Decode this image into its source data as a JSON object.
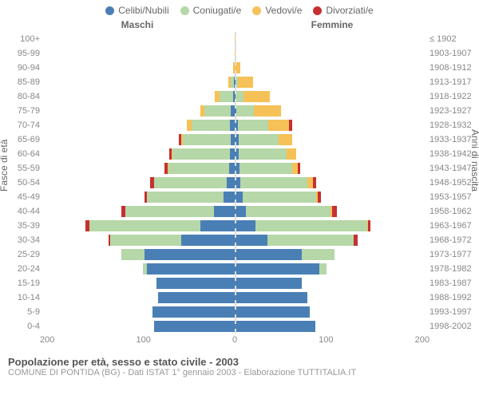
{
  "legend": [
    {
      "label": "Celibi/Nubili",
      "color": "#4a7fb6"
    },
    {
      "label": "Coniugati/e",
      "color": "#b6d7a8"
    },
    {
      "label": "Vedovi/e",
      "color": "#f6c157"
    },
    {
      "label": "Divorziati/e",
      "color": "#c73030"
    }
  ],
  "headers": {
    "male": "Maschi",
    "female": "Femmine"
  },
  "yaxis_left_label": "Fasce di età",
  "yaxis_right_label": "Anni di nascita",
  "xmax": 200,
  "xticks_male": [
    "200",
    "100",
    "0"
  ],
  "xticks_female": [
    "0",
    "100",
    "200"
  ],
  "rows": [
    {
      "age": "100+",
      "year": "≤ 1902",
      "m": [
        0,
        0,
        0,
        0
      ],
      "f": [
        0,
        0,
        1,
        0
      ]
    },
    {
      "age": "95-99",
      "year": "1903-1907",
      "m": [
        0,
        0,
        0,
        0
      ],
      "f": [
        0,
        0,
        1,
        0
      ]
    },
    {
      "age": "90-94",
      "year": "1908-1912",
      "m": [
        0,
        0,
        2,
        0
      ],
      "f": [
        0,
        0,
        6,
        0
      ]
    },
    {
      "age": "85-89",
      "year": "1913-1917",
      "m": [
        1,
        3,
        3,
        0
      ],
      "f": [
        1,
        2,
        16,
        0
      ]
    },
    {
      "age": "80-84",
      "year": "1918-1922",
      "m": [
        2,
        14,
        5,
        0
      ],
      "f": [
        1,
        8,
        28,
        0
      ]
    },
    {
      "age": "75-79",
      "year": "1923-1927",
      "m": [
        4,
        28,
        4,
        0
      ],
      "f": [
        2,
        18,
        28,
        0
      ]
    },
    {
      "age": "70-74",
      "year": "1928-1932",
      "m": [
        5,
        40,
        5,
        0
      ],
      "f": [
        3,
        32,
        22,
        3
      ]
    },
    {
      "age": "65-69",
      "year": "1933-1937",
      "m": [
        4,
        50,
        2,
        2
      ],
      "f": [
        4,
        42,
        14,
        0
      ]
    },
    {
      "age": "60-64",
      "year": "1938-1942",
      "m": [
        5,
        60,
        1,
        2
      ],
      "f": [
        4,
        50,
        10,
        0
      ]
    },
    {
      "age": "55-59",
      "year": "1943-1947",
      "m": [
        6,
        63,
        1,
        3
      ],
      "f": [
        5,
        55,
        6,
        2
      ]
    },
    {
      "age": "50-54",
      "year": "1948-1952",
      "m": [
        8,
        76,
        0,
        4
      ],
      "f": [
        6,
        70,
        6,
        3
      ]
    },
    {
      "age": "45-49",
      "year": "1953-1957",
      "m": [
        12,
        80,
        0,
        2
      ],
      "f": [
        8,
        77,
        2,
        3
      ]
    },
    {
      "age": "40-44",
      "year": "1958-1962",
      "m": [
        22,
        92,
        0,
        4
      ],
      "f": [
        12,
        88,
        2,
        5
      ]
    },
    {
      "age": "35-39",
      "year": "1963-1967",
      "m": [
        36,
        116,
        0,
        4
      ],
      "f": [
        22,
        116,
        1,
        3
      ]
    },
    {
      "age": "30-34",
      "year": "1968-1972",
      "m": [
        56,
        74,
        0,
        2
      ],
      "f": [
        34,
        90,
        0,
        4
      ]
    },
    {
      "age": "25-29",
      "year": "1973-1977",
      "m": [
        94,
        24,
        0,
        0
      ],
      "f": [
        70,
        34,
        0,
        0
      ]
    },
    {
      "age": "20-24",
      "year": "1978-1982",
      "m": [
        92,
        4,
        0,
        0
      ],
      "f": [
        88,
        8,
        0,
        0
      ]
    },
    {
      "age": "15-19",
      "year": "1983-1987",
      "m": [
        82,
        0,
        0,
        0
      ],
      "f": [
        70,
        0,
        0,
        0
      ]
    },
    {
      "age": "10-14",
      "year": "1988-1992",
      "m": [
        80,
        0,
        0,
        0
      ],
      "f": [
        76,
        0,
        0,
        0
      ]
    },
    {
      "age": "5-9",
      "year": "1993-1997",
      "m": [
        86,
        0,
        0,
        0
      ],
      "f": [
        78,
        0,
        0,
        0
      ]
    },
    {
      "age": "0-4",
      "year": "1998-2002",
      "m": [
        84,
        0,
        0,
        0
      ],
      "f": [
        84,
        0,
        0,
        0
      ]
    }
  ],
  "footer": {
    "title": "Popolazione per età, sesso e stato civile - 2003",
    "sub": "COMUNE DI PONTIDA (BG) - Dati ISTAT 1° gennaio 2003 - Elaborazione TUTTITALIA.IT"
  }
}
